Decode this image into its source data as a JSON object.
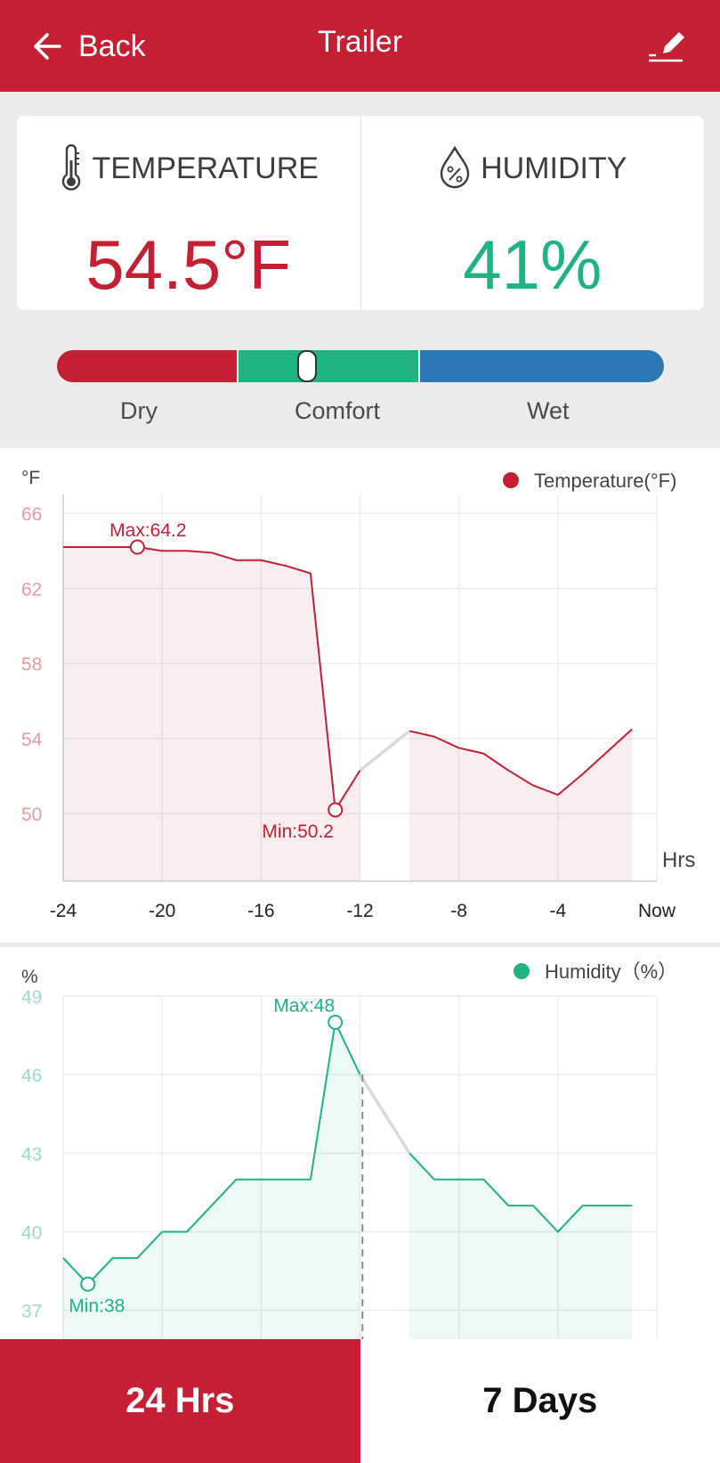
{
  "header": {
    "back_label": "Back",
    "title": "Trailer"
  },
  "temperature": {
    "label": "TEMPERATURE",
    "value": "54.5°F"
  },
  "humidity": {
    "label": "HUMIDITY",
    "value": "41%"
  },
  "comfort_scale": {
    "labels": [
      "Dry",
      "Comfort",
      "Wet"
    ],
    "colors": [
      "#c51f33",
      "#1eb380",
      "#2b78b5"
    ]
  },
  "tabs": {
    "hrs24": "24 Hrs",
    "days7": "7 Days"
  },
  "chart_data": [
    {
      "type": "line",
      "unit_label": "°F",
      "legend": "Temperature(°F)",
      "color": "#c51f33",
      "x_tick_labels": [
        "-24",
        "-20",
        "-16",
        "-12",
        "-8",
        "-4",
        "Now"
      ],
      "x_tick_values": [
        -24,
        -20,
        -16,
        -12,
        -8,
        -4,
        0
      ],
      "xlabel": "Hrs",
      "y_tick_values": [
        66,
        62,
        58,
        54,
        50
      ],
      "ylim": [
        46.4,
        67
      ],
      "xlim": [
        -24,
        0
      ],
      "max_label": "Max:64.2",
      "min_label": "Min:50.2",
      "max_point": [
        -21,
        64.2
      ],
      "min_point": [
        -13,
        50.2
      ],
      "segments": [
        {
          "kind": "data",
          "points": [
            [
              -24,
              64.2
            ],
            [
              -21,
              64.2
            ],
            [
              -20,
              64.0
            ],
            [
              -19,
              64.0
            ],
            [
              -18,
              63.9
            ],
            [
              -17,
              63.5
            ],
            [
              -16,
              63.5
            ],
            [
              -15,
              63.2
            ],
            [
              -14,
              62.8
            ],
            [
              -13,
              50.2
            ],
            [
              -12,
              52.3
            ]
          ]
        },
        {
          "kind": "gap",
          "points": [
            [
              -12,
              52.3
            ],
            [
              -10,
              54.4
            ]
          ]
        },
        {
          "kind": "data",
          "points": [
            [
              -10,
              54.4
            ],
            [
              -9,
              54.1
            ],
            [
              -8,
              53.5
            ],
            [
              -7,
              53.2
            ],
            [
              -6,
              52.3
            ],
            [
              -5,
              51.5
            ],
            [
              -4,
              51.0
            ],
            [
              -3,
              52.1
            ],
            [
              -2,
              53.3
            ],
            [
              -1,
              54.5
            ]
          ]
        }
      ]
    },
    {
      "type": "line",
      "unit_label": "%",
      "legend": "Humidity（%）",
      "color": "#1eb380",
      "x_tick_values": [
        -24,
        -20,
        -16,
        -12,
        -8,
        -4,
        0
      ],
      "y_tick_values": [
        49,
        46,
        43,
        40,
        37
      ],
      "ylim": [
        35.9,
        49
      ],
      "xlim": [
        -24,
        0
      ],
      "max_label": "Max:48",
      "min_label": "Min:38",
      "max_point": [
        -13,
        48
      ],
      "min_point": [
        -23,
        38
      ],
      "cursor_x": -11.9,
      "segments": [
        {
          "kind": "data",
          "points": [
            [
              -24,
              39
            ],
            [
              -23,
              38
            ],
            [
              -22,
              39
            ],
            [
              -21,
              39
            ],
            [
              -20,
              40
            ],
            [
              -19,
              40
            ],
            [
              -18,
              41
            ],
            [
              -17,
              42
            ],
            [
              -16,
              42
            ],
            [
              -15,
              42
            ],
            [
              -14,
              42
            ],
            [
              -13,
              48
            ],
            [
              -12,
              46
            ]
          ]
        },
        {
          "kind": "gap",
          "points": [
            [
              -12,
              46
            ],
            [
              -10,
              43
            ]
          ]
        },
        {
          "kind": "data",
          "points": [
            [
              -10,
              43
            ],
            [
              -9,
              42
            ],
            [
              -8,
              42
            ],
            [
              -7,
              42
            ],
            [
              -6,
              41
            ],
            [
              -5,
              41
            ],
            [
              -4,
              40
            ],
            [
              -3,
              41
            ],
            [
              -2,
              41
            ],
            [
              -1,
              41
            ]
          ]
        }
      ]
    }
  ]
}
